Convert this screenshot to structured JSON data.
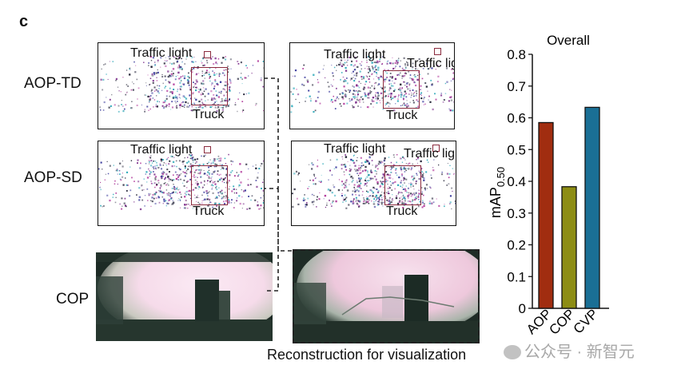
{
  "panel_letter": "c",
  "rows": [
    {
      "label": "AOP-TD"
    },
    {
      "label": "AOP-SD"
    },
    {
      "label": "COP"
    }
  ],
  "annotations": {
    "traffic_light": "Traffic light",
    "truck": "Truck"
  },
  "caption": "Reconstruction for visualization",
  "watermark": "公众号 · 新智元",
  "colors": {
    "AOP": "#a12d10",
    "COP": "#8d8d14",
    "CVP": "#1a6f95"
  },
  "chart_data": {
    "type": "bar",
    "title": "Overall",
    "categories": [
      "AOP",
      "COP",
      "CVP"
    ],
    "values": [
      0.585,
      0.383,
      0.633
    ],
    "ylabel": "mAP",
    "ylabel_sub": "0.50",
    "ylim": [
      0,
      0.8
    ],
    "yticks": [
      "0",
      "0.1",
      "0.2",
      "0.3",
      "0.4",
      "0.5",
      "0.6",
      "0.7",
      "0.8"
    ],
    "grid": false
  }
}
